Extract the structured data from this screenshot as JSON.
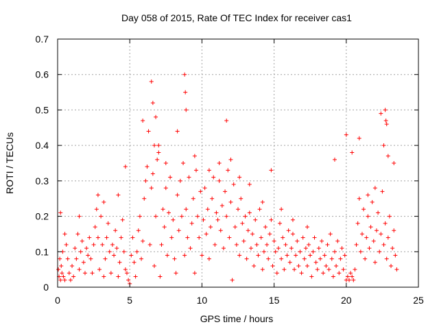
{
  "chart_data": {
    "type": "scatter",
    "title": "Day 058 of 2015, Rate Of TEC Index for receiver cas1",
    "xlabel": "GPS time / hours",
    "ylabel": "ROTI / TECUs",
    "xlim": [
      0,
      25
    ],
    "ylim": [
      0,
      0.7
    ],
    "xticks": [
      0,
      5,
      10,
      15,
      20,
      25
    ],
    "yticks": [
      0,
      0.1,
      0.2,
      0.3,
      0.4,
      0.5,
      0.6,
      0.7
    ],
    "xtick_labels": [
      "0",
      "5",
      "10",
      "15",
      "20",
      "25"
    ],
    "ytick_labels": [
      "0",
      "0.1",
      "0.2",
      "0.3",
      "0.4",
      "0.5",
      "0.6",
      "0.7"
    ],
    "grid": true,
    "marker": "+",
    "marker_color": "#ff0000",
    "series": [
      {
        "name": "ROTI",
        "x": [
          0.05,
          0.1,
          0.15,
          0.2,
          0.25,
          0.3,
          0.35,
          0.4,
          0.5,
          0.6,
          0.7,
          0.8,
          0.9,
          1.0,
          1.1,
          1.2,
          1.3,
          1.4,
          1.5,
          1.6,
          1.7,
          1.8,
          1.9,
          2.0,
          2.1,
          2.2,
          2.3,
          2.4,
          2.5,
          2.6,
          2.7,
          2.8,
          2.9,
          3.0,
          3.1,
          3.2,
          3.3,
          3.4,
          3.5,
          3.6,
          3.7,
          3.8,
          3.9,
          4.0,
          4.1,
          4.2,
          4.3,
          4.4,
          4.5,
          4.6,
          4.7,
          4.8,
          4.9,
          5.0,
          5.1,
          5.2,
          5.3,
          5.4,
          5.5,
          5.6,
          5.7,
          5.8,
          5.9,
          6.0,
          6.1,
          6.2,
          6.3,
          6.4,
          6.5,
          6.6,
          6.7,
          6.8,
          6.9,
          7.0,
          7.1,
          7.2,
          7.3,
          7.4,
          7.5,
          7.6,
          7.7,
          7.8,
          7.9,
          8.0,
          8.1,
          8.2,
          8.3,
          8.4,
          8.5,
          8.6,
          8.7,
          8.8,
          8.9,
          9.0,
          9.1,
          9.2,
          9.3,
          9.4,
          9.5,
          9.6,
          9.7,
          9.8,
          9.9,
          10.0,
          10.1,
          10.2,
          10.3,
          10.4,
          10.5,
          10.6,
          10.7,
          10.8,
          10.9,
          11.0,
          11.1,
          11.2,
          11.3,
          11.4,
          11.5,
          11.6,
          11.7,
          11.8,
          11.9,
          12.0,
          12.1,
          12.2,
          12.3,
          12.4,
          12.5,
          12.6,
          12.7,
          12.8,
          12.9,
          13.0,
          13.1,
          13.2,
          13.3,
          13.4,
          13.5,
          13.6,
          13.7,
          13.8,
          13.9,
          14.0,
          14.1,
          14.2,
          14.3,
          14.4,
          14.5,
          14.6,
          14.7,
          14.8,
          14.9,
          15.0,
          15.1,
          15.2,
          15.3,
          15.4,
          15.5,
          15.6,
          15.7,
          15.8,
          15.9,
          16.0,
          16.1,
          16.2,
          16.3,
          16.4,
          16.5,
          16.6,
          16.7,
          16.8,
          16.9,
          17.0,
          17.1,
          17.2,
          17.3,
          17.4,
          17.5,
          17.6,
          17.7,
          17.8,
          17.9,
          18.0,
          18.1,
          18.2,
          18.3,
          18.4,
          18.5,
          18.6,
          18.7,
          18.8,
          18.9,
          19.0,
          19.1,
          19.2,
          19.3,
          19.4,
          19.5,
          19.6,
          19.7,
          19.8,
          19.9,
          20.0,
          20.1,
          20.2,
          20.3,
          20.4,
          20.5,
          20.6,
          20.7,
          20.8,
          20.9,
          21.0,
          21.1,
          21.2,
          21.3,
          21.4,
          21.5,
          21.6,
          21.7,
          21.8,
          21.9,
          22.0,
          22.1,
          22.2,
          22.3,
          22.4,
          22.5,
          22.6,
          22.7,
          22.8,
          22.9,
          23.0,
          23.1,
          23.2,
          23.3,
          23.4,
          23.5,
          0.2,
          0.5,
          1.5,
          2.8,
          3.2,
          4.2,
          4.7,
          5.9,
          6.5,
          6.6,
          6.7,
          6.8,
          7.0,
          7.5,
          8.3,
          8.8,
          8.85,
          8.9,
          9.5,
          10.5,
          11.2,
          11.7,
          12.0,
          12.6,
          13.3,
          14.2,
          14.8,
          15.5,
          16.3,
          17.3,
          19.2,
          20.0,
          20.4,
          20.9,
          21.5,
          22.0,
          22.4,
          22.6,
          22.7,
          22.75,
          22.8,
          22.9,
          23.3
        ],
        "y": [
          0.05,
          0.03,
          0.08,
          0.02,
          0.06,
          0.04,
          0.1,
          0.03,
          0.02,
          0.12,
          0.08,
          0.04,
          0.02,
          0.06,
          0.03,
          0.11,
          0.08,
          0.15,
          0.05,
          0.1,
          0.13,
          0.07,
          0.04,
          0.11,
          0.09,
          0.14,
          0.08,
          0.04,
          0.12,
          0.17,
          0.22,
          0.14,
          0.05,
          0.2,
          0.12,
          0.03,
          0.08,
          0.14,
          0.18,
          0.1,
          0.04,
          0.12,
          0.09,
          0.16,
          0.11,
          0.03,
          0.07,
          0.14,
          0.19,
          0.1,
          0.05,
          0.04,
          0.02,
          0.01,
          0.09,
          0.14,
          0.07,
          0.03,
          0.1,
          0.16,
          0.2,
          0.08,
          0.13,
          0.25,
          0.3,
          0.34,
          0.44,
          0.12,
          0.28,
          0.32,
          0.06,
          0.2,
          0.36,
          0.4,
          0.03,
          0.12,
          0.22,
          0.17,
          0.28,
          0.09,
          0.21,
          0.31,
          0.14,
          0.19,
          0.08,
          0.04,
          0.26,
          0.16,
          0.3,
          0.2,
          0.35,
          0.09,
          0.22,
          0.14,
          0.31,
          0.11,
          0.18,
          0.25,
          0.04,
          0.33,
          0.2,
          0.14,
          0.27,
          0.09,
          0.19,
          0.28,
          0.15,
          0.22,
          0.08,
          0.17,
          0.25,
          0.31,
          0.12,
          0.21,
          0.19,
          0.3,
          0.16,
          0.23,
          0.11,
          0.27,
          0.2,
          0.33,
          0.14,
          0.24,
          0.02,
          0.29,
          0.17,
          0.12,
          0.22,
          0.09,
          0.25,
          0.18,
          0.13,
          0.2,
          0.08,
          0.16,
          0.21,
          0.11,
          0.15,
          0.06,
          0.19,
          0.12,
          0.09,
          0.22,
          0.14,
          0.05,
          0.1,
          0.17,
          0.12,
          0.08,
          0.15,
          0.19,
          0.06,
          0.13,
          0.1,
          0.04,
          0.11,
          0.18,
          0.08,
          0.14,
          0.05,
          0.12,
          0.09,
          0.16,
          0.07,
          0.11,
          0.15,
          0.05,
          0.09,
          0.13,
          0.06,
          0.1,
          0.04,
          0.14,
          0.08,
          0.11,
          0.06,
          0.12,
          0.09,
          0.03,
          0.1,
          0.14,
          0.07,
          0.05,
          0.11,
          0.08,
          0.13,
          0.04,
          0.09,
          0.06,
          0.12,
          0.05,
          0.15,
          0.08,
          0.03,
          0.1,
          0.06,
          0.13,
          0.04,
          0.08,
          0.11,
          0.05,
          0.09,
          0.02,
          0.03,
          0.02,
          0.04,
          0.03,
          0.02,
          0.05,
          0.12,
          0.18,
          0.25,
          0.1,
          0.15,
          0.22,
          0.08,
          0.14,
          0.2,
          0.11,
          0.17,
          0.24,
          0.13,
          0.07,
          0.16,
          0.21,
          0.1,
          0.15,
          0.27,
          0.12,
          0.18,
          0.08,
          0.14,
          0.2,
          0.06,
          0.11,
          0.16,
          0.09,
          0.05,
          0.21,
          0.15,
          0.2,
          0.26,
          0.24,
          0.26,
          0.34,
          0.47,
          0.58,
          0.52,
          0.4,
          0.48,
          0.38,
          0.35,
          0.44,
          0.6,
          0.55,
          0.5,
          0.37,
          0.33,
          0.35,
          0.47,
          0.36,
          0.31,
          0.29,
          0.24,
          0.33,
          0.22,
          0.19,
          0.17,
          0.36,
          0.43,
          0.38,
          0.42,
          0.26,
          0.28,
          0.49,
          0.4,
          0.5,
          0.47,
          0.46,
          0.37,
          0.35
        ]
      }
    ]
  }
}
